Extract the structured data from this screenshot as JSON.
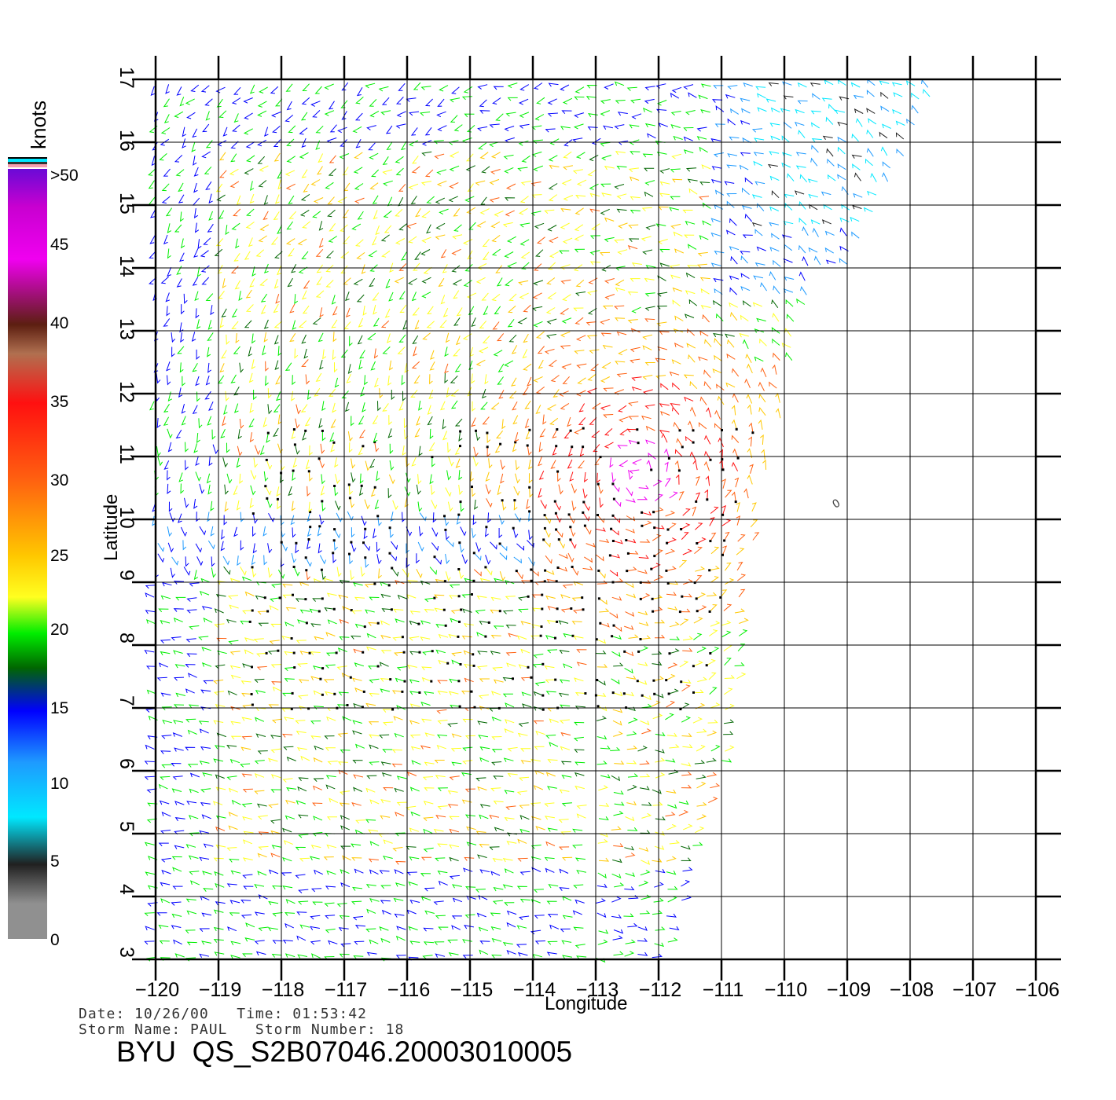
{
  "colorbar": {
    "units": "knots",
    "labels": [
      ">50",
      "45",
      "40",
      "35",
      "30",
      "25",
      "20",
      "15",
      "10",
      "5",
      "0"
    ],
    "colors": [
      "#6a0ad6",
      "#c800d0",
      "#f000f0",
      "#5c1e10",
      "#b07050",
      "#ff1010",
      "#ff6010",
      "#ffc800",
      "#ffff20",
      "#00ee00",
      "#006600",
      "#0000ff",
      "#1e9aff",
      "#00e8ff",
      "#202020",
      "#909090"
    ]
  },
  "axes": {
    "x_label": "Longitude",
    "y_label": "Latitude",
    "x_ticks": [
      "−120",
      "−119",
      "−118",
      "−117",
      "−116",
      "−115",
      "−114",
      "−113",
      "−112",
      "−111",
      "−110",
      "−109",
      "−108",
      "−107",
      "−106"
    ],
    "y_ticks": [
      "3",
      "4",
      "5",
      "6",
      "7",
      "8",
      "9",
      "10",
      "11",
      "12",
      "13",
      "14",
      "15",
      "16",
      "17"
    ],
    "lon_range": [
      -120,
      -106
    ],
    "lat_range": [
      3,
      17
    ]
  },
  "meta": {
    "line1": "Date: 10/26/00   Time: 01:53:42",
    "line2": "Storm Name: PAUL   Storm Number: 18",
    "title": "BYU  QS_S2B07046.20003010005"
  },
  "markers": {
    "storm_marker": "0"
  }
}
